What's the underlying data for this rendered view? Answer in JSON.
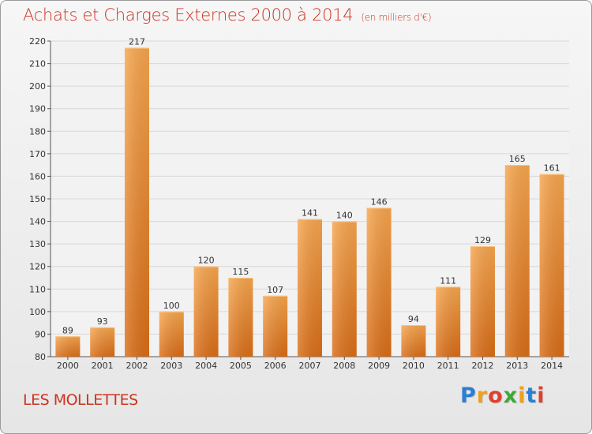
{
  "header": {
    "title": "Achats et Charges Externes 2000 à 2014",
    "subtitle": "(en milliers d'€)"
  },
  "footer": {
    "place": "LES MOLLETTES",
    "logo_letters": [
      {
        "ch": "P",
        "color": "#2a7fd4"
      },
      {
        "ch": "r",
        "color": "#f0a020"
      },
      {
        "ch": "o",
        "color": "#e04030"
      },
      {
        "ch": "x",
        "color": "#3aaa35"
      },
      {
        "ch": "i",
        "color": "#f0a020"
      },
      {
        "ch": "t",
        "color": "#2a7fd4"
      },
      {
        "ch": "i",
        "color": "#e04030"
      }
    ]
  },
  "colors": {
    "title": "#cc3322",
    "bar_light": "#f7a64e",
    "bar_dark": "#d96d17",
    "grid": "#d8d8d8",
    "plot_bg": "#f2f2f2"
  },
  "chart_data": {
    "type": "bar",
    "categories": [
      "2000",
      "2001",
      "2002",
      "2003",
      "2004",
      "2005",
      "2006",
      "2007",
      "2008",
      "2009",
      "2010",
      "2011",
      "2012",
      "2013",
      "2014"
    ],
    "values": [
      89,
      93,
      217,
      100,
      120,
      115,
      107,
      141,
      140,
      146,
      94,
      111,
      129,
      165,
      161
    ],
    "title": "Achats et Charges Externes 2000 à 2014",
    "subtitle": "(en milliers d'€)",
    "xlabel": "",
    "ylabel": "",
    "ylim": [
      80,
      220
    ],
    "yticks": [
      80,
      90,
      100,
      110,
      120,
      130,
      140,
      150,
      160,
      170,
      180,
      190,
      200,
      210,
      220
    ],
    "grid": true,
    "data_labels": true
  }
}
